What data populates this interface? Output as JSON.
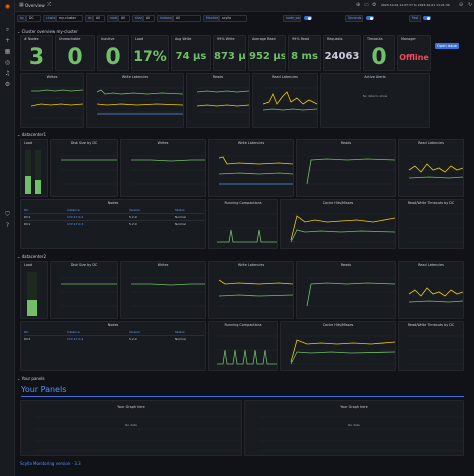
{
  "app": {
    "title": "Overview",
    "time_range": "2023-10-01 11:07:37 to 2023-10-01 11:21:30",
    "footer": "Scylla Monitoring version - 3.3"
  },
  "sidebar": {
    "icons": [
      "grafana-logo-icon",
      "search-icon",
      "plus-icon",
      "dashboards-icon",
      "explore-icon",
      "alert-icon",
      "gear-icon",
      "shield-icon",
      "help-icon"
    ]
  },
  "variables": [
    {
      "label": "by",
      "value": "DC"
    },
    {
      "label": "cluster",
      "value": "my-cluster"
    },
    {
      "label": "dc",
      "value": "All"
    },
    {
      "label": "node",
      "value": "All"
    },
    {
      "label": "shard",
      "value": "All"
    },
    {
      "label": "Instance",
      "value": "All"
    },
    {
      "label": "Monitor",
      "value": "scylla"
    }
  ],
  "toggles": [
    "node_sorted",
    "Seconds",
    "Fast"
  ],
  "rows": {
    "cluster": "Cluster overview my-cluster",
    "dc1": "datacenter1",
    "dc2": "datacenter2",
    "your_panels": "Your panels"
  },
  "stats": [
    {
      "title": "# Nodes",
      "value": "3",
      "color": "#73bf69"
    },
    {
      "title": "Unreachable",
      "value": "0",
      "color": "#73bf69"
    },
    {
      "title": "Inactive",
      "value": "0",
      "color": "#73bf69"
    },
    {
      "title": "Load",
      "value": "17%",
      "color": "#73bf69"
    },
    {
      "title": "Avg Write",
      "value": "74 μs",
      "color": "#73bf69"
    },
    {
      "title": "99% Write",
      "value": "873 μs",
      "color": "#73bf69"
    },
    {
      "title": "Average Read",
      "value": "952 μs",
      "color": "#73bf69"
    },
    {
      "title": "99% Read",
      "value": "8 ms",
      "color": "#73bf69"
    },
    {
      "title": "Requests",
      "value": "24063",
      "color": "#ccccdc"
    },
    {
      "title": "Timeouts",
      "value": "0",
      "color": "#73bf69"
    },
    {
      "title": "Manager",
      "value": "Offline",
      "color": "#f2495c"
    }
  ],
  "open_issue": "Open issue",
  "cluster_panels": [
    "Writes",
    "Write Latencies",
    "Reads",
    "Read Latencies",
    "Active Alerts"
  ],
  "alerts_nodata": "No data to show",
  "dc_panels": {
    "load": "Load",
    "disk": "Disk Size by DC",
    "writes": "Writes",
    "write_lat": "Write Latencies",
    "reads": "Reads",
    "read_lat": "Read Latencies",
    "nodes": "Nodes",
    "compactions": "Running Compactions",
    "cache": "Cache Hits/Misses",
    "rw_timeouts": "Read/Write Timeouts by DC"
  },
  "nodes_table": {
    "headers": [
      "DC",
      "Instance",
      "Version",
      "Status"
    ],
    "dc1_rows": [
      [
        "DC1",
        "172.17.0.2",
        "5.2.9",
        "Normal"
      ],
      [
        "DC1",
        "172.17.0.3",
        "5.2.9",
        "Normal"
      ]
    ],
    "dc2_rows": [
      [
        "DC2",
        "172.17.0.4",
        "5.2.9",
        "Normal"
      ]
    ]
  },
  "your_panels": {
    "heading": "Your Panels",
    "graph_title": "Your Graph here",
    "nodata": "No data"
  }
}
